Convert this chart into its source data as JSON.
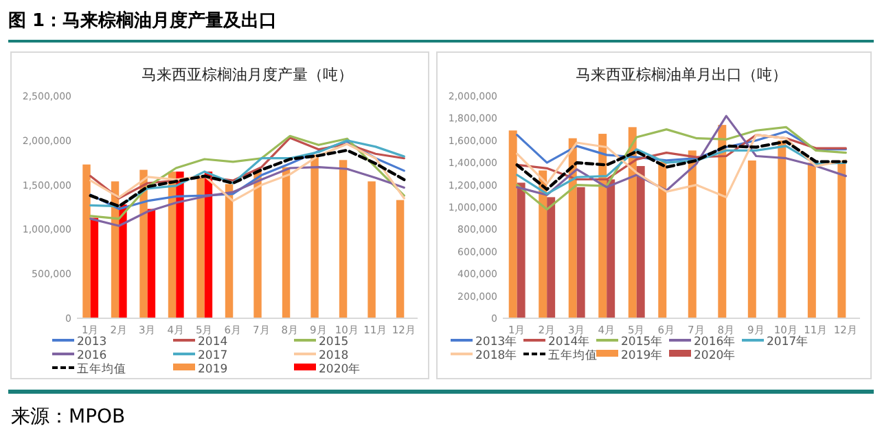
{
  "chart_data": [
    {
      "type": "other",
      "title": "图 1：马来棕榈油月度产量及出口"
    },
    {
      "type": "bar",
      "title": "马来西亚棕榈油月度产量（吨）",
      "categories": [
        "1月",
        "2月",
        "3月",
        "4月",
        "5月",
        "6月",
        "7月",
        "8月",
        "9月",
        "10月",
        "11月",
        "12月"
      ],
      "ylim": [
        0,
        2500000
      ],
      "yticks": [
        0,
        {
          "value": 500000,
          "label": "500,000"
        },
        {
          "value": 1000000,
          "label": "1,000,000"
        },
        {
          "value": 1500000,
          "label": "1,500,000"
        },
        {
          "value": 2000000,
          "label": "2,000,000"
        },
        {
          "value": 2500000,
          "label": "2,500,000"
        }
      ],
      "legend": "bottom",
      "marker": "none",
      "series": [
        {
          "name": "2013",
          "type": "line",
          "color": "#4a7bd0",
          "values": [
            1390000,
            1230000,
            1320000,
            1370000,
            1380000,
            1400000,
            1610000,
            1740000,
            1880000,
            1990000,
            1800000,
            1660000
          ]
        },
        {
          "name": "2014",
          "type": "line",
          "color": "#c0504d",
          "values": [
            1600000,
            1350000,
            1520000,
            1550000,
            1590000,
            1550000,
            1700000,
            2030000,
            1900000,
            1960000,
            1850000,
            1800000
          ]
        },
        {
          "name": "2015",
          "type": "line",
          "color": "#9bbb59",
          "values": [
            1150000,
            1120000,
            1480000,
            1690000,
            1790000,
            1760000,
            1800000,
            2050000,
            1950000,
            2020000,
            1700000,
            1380000
          ]
        },
        {
          "name": "2016",
          "type": "line",
          "color": "#8064a2",
          "values": [
            1120000,
            1040000,
            1200000,
            1300000,
            1370000,
            1420000,
            1560000,
            1690000,
            1700000,
            1680000,
            1580000,
            1470000
          ]
        },
        {
          "name": "2017",
          "type": "line",
          "color": "#4bacc6",
          "values": [
            1270000,
            1260000,
            1460000,
            1490000,
            1650000,
            1520000,
            1800000,
            1800000,
            1870000,
            2000000,
            1930000,
            1820000
          ]
        },
        {
          "name": "2018",
          "type": "line",
          "color": "#fbcaa0",
          "values": [
            1550000,
            1360000,
            1590000,
            1560000,
            1600000,
            1320000,
            1500000,
            1620000,
            1830000,
            1960000,
            1800000,
            1350000
          ]
        },
        {
          "name": "五年均值",
          "type": "line",
          "color": "#000000",
          "line_style": "dashed",
          "values": [
            1380000,
            1260000,
            1480000,
            1540000,
            1600000,
            1520000,
            1670000,
            1790000,
            1830000,
            1890000,
            1740000,
            1560000
          ]
        },
        {
          "name": "2019",
          "type": "bar",
          "color": "#f79646",
          "values": [
            1730000,
            1540000,
            1670000,
            1650000,
            1600000,
            1510000,
            1670000,
            1700000,
            1840000,
            1780000,
            1540000,
            1330000
          ]
        },
        {
          "name": "2020年",
          "type": "bar",
          "color": "#ff0000",
          "values": [
            1130000,
            1280000,
            1230000,
            1650000,
            1650000,
            null,
            null,
            null,
            null,
            null,
            null,
            null
          ]
        }
      ]
    },
    {
      "type": "bar",
      "title": "马来西亚棕榈油单月出口（吨）",
      "categories": [
        "1月",
        "2月",
        "3月",
        "4月",
        "5月",
        "6月",
        "7月",
        "8月",
        "9月",
        "10月",
        "11月",
        "12月"
      ],
      "ylim": [
        0,
        2000000
      ],
      "yticks": [
        0,
        {
          "value": 200000,
          "label": "200,000"
        },
        {
          "value": 400000,
          "label": "400,000"
        },
        {
          "value": 600000,
          "label": "600,000"
        },
        {
          "value": 800000,
          "label": "800,000"
        },
        {
          "value": 1000000,
          "label": "1,000,000"
        },
        {
          "value": 1200000,
          "label": "1,200,000"
        },
        {
          "value": 1400000,
          "label": "1,400,000"
        },
        {
          "value": 1600000,
          "label": "1,600,000"
        },
        {
          "value": 1800000,
          "label": "1,800,000"
        },
        {
          "value": 2000000,
          "label": "2,000,000"
        }
      ],
      "legend": "bottom",
      "marker": "none",
      "series": [
        {
          "name": "2013年",
          "type": "line",
          "color": "#4a7bd0",
          "values": [
            1650000,
            1400000,
            1550000,
            1470000,
            1450000,
            1420000,
            1440000,
            1540000,
            1600000,
            1680000,
            1520000,
            1520000
          ]
        },
        {
          "name": "2014年",
          "type": "line",
          "color": "#c0504d",
          "values": [
            1380000,
            1350000,
            1250000,
            1250000,
            1430000,
            1490000,
            1450000,
            1460000,
            1650000,
            1620000,
            1530000,
            1530000
          ]
        },
        {
          "name": "2015年",
          "type": "line",
          "color": "#9bbb59",
          "values": [
            1200000,
            980000,
            1200000,
            1190000,
            1630000,
            1700000,
            1620000,
            1610000,
            1690000,
            1720000,
            1510000,
            1490000
          ]
        },
        {
          "name": "2016年",
          "type": "line",
          "color": "#8064a2",
          "values": [
            1180000,
            1110000,
            1340000,
            1180000,
            1290000,
            1150000,
            1390000,
            1820000,
            1460000,
            1440000,
            1370000,
            1280000
          ]
        },
        {
          "name": "2017年",
          "type": "line",
          "color": "#4bacc6",
          "values": [
            1290000,
            1120000,
            1270000,
            1280000,
            1520000,
            1400000,
            1420000,
            1510000,
            1510000,
            1550000,
            1390000,
            1400000
          ]
        },
        {
          "name": "2018年",
          "type": "line",
          "color": "#fbcaa0",
          "values": [
            1480000,
            1210000,
            1580000,
            1540000,
            1310000,
            1140000,
            1200000,
            1090000,
            1650000,
            1620000,
            1370000,
            1420000
          ]
        },
        {
          "name": "五年均值",
          "type": "line",
          "color": "#000000",
          "line_style": "dashed",
          "values": [
            1380000,
            1160000,
            1400000,
            1380000,
            1500000,
            1360000,
            1420000,
            1550000,
            1540000,
            1590000,
            1410000,
            1410000
          ]
        },
        {
          "name": "2019年",
          "type": "bar",
          "color": "#f79646",
          "values": [
            1690000,
            1330000,
            1620000,
            1660000,
            1720000,
            1410000,
            1510000,
            1740000,
            1420000,
            1600000,
            1400000,
            1410000
          ]
        },
        {
          "name": "2020年",
          "type": "bar",
          "color": "#c0504d",
          "values": [
            1220000,
            1090000,
            1180000,
            1250000,
            1370000,
            null,
            null,
            null,
            null,
            null,
            null,
            null
          ]
        }
      ]
    },
    {
      "type": "other",
      "annotations": [
        "来源：MPOB"
      ]
    }
  ]
}
